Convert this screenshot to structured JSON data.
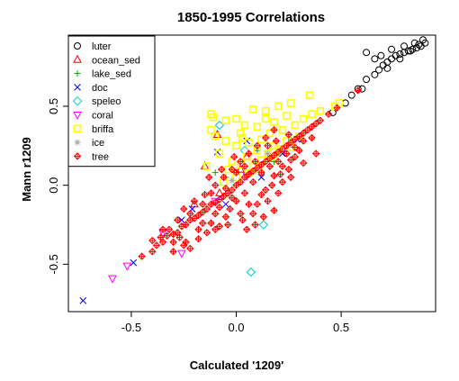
{
  "chart_data": {
    "type": "scatter",
    "title": "1850-1995 Correlations",
    "xlabel": "Calculated '1209'",
    "ylabel": "Mann r1209",
    "xlim": [
      -0.8,
      0.95
    ],
    "ylim": [
      -0.8,
      0.95
    ],
    "x_ticks": [
      "-0.5",
      "0.0",
      "0.5"
    ],
    "y_ticks": [
      "-0.5",
      "0.0",
      "0.5"
    ],
    "grid": false,
    "legend_position": "top-left",
    "series": [
      {
        "name": "luter",
        "color": "#000000",
        "marker": "circle",
        "points": [
          [
            0.62,
            0.84
          ],
          [
            0.66,
            0.8
          ],
          [
            0.7,
            0.76
          ],
          [
            0.72,
            0.78
          ],
          [
            0.74,
            0.8
          ],
          [
            0.76,
            0.82
          ],
          [
            0.78,
            0.83
          ],
          [
            0.8,
            0.84
          ],
          [
            0.82,
            0.85
          ],
          [
            0.84,
            0.86
          ],
          [
            0.86,
            0.87
          ],
          [
            0.88,
            0.88
          ],
          [
            0.9,
            0.9
          ],
          [
            0.89,
            0.92
          ],
          [
            0.85,
            0.9
          ],
          [
            0.8,
            0.88
          ],
          [
            0.74,
            0.86
          ],
          [
            0.69,
            0.82
          ],
          [
            0.66,
            0.7
          ],
          [
            0.62,
            0.67
          ],
          [
            0.58,
            0.61
          ],
          [
            0.6,
            0.61
          ],
          [
            0.55,
            0.57
          ],
          [
            0.52,
            0.52
          ],
          [
            0.46,
            0.46
          ],
          [
            0.68,
            0.73
          ],
          [
            0.83,
            0.85
          ],
          [
            0.87,
            0.89
          ],
          [
            0.78,
            0.8
          ],
          [
            0.72,
            0.74
          ]
        ]
      },
      {
        "name": "ocean_sed",
        "color": "#ff0000",
        "marker": "triangle-up",
        "points": [
          [
            -0.09,
            0.32
          ],
          [
            -0.15,
            0.12
          ],
          [
            -0.08,
            -0.05
          ],
          [
            0.02,
            0.1
          ],
          [
            0.05,
            0.18
          ],
          [
            -0.2,
            -0.12
          ]
        ]
      },
      {
        "name": "lake_sed",
        "color": "#00aa00",
        "marker": "plus",
        "points": [
          [
            0.1,
            0.22
          ],
          [
            0.25,
            0.3
          ],
          [
            -0.05,
            0.05
          ],
          [
            0.18,
            0.15
          ],
          [
            -0.1,
            0.08
          ]
        ]
      },
      {
        "name": "doc",
        "color": "#0000ff",
        "marker": "x",
        "points": [
          [
            -0.73,
            -0.73
          ],
          [
            -0.49,
            -0.49
          ],
          [
            -0.26,
            -0.22
          ],
          [
            -0.09,
            0.21
          ],
          [
            0.05,
            0.28
          ],
          [
            0.29,
            0.29
          ],
          [
            -0.21,
            -0.15
          ],
          [
            0.12,
            0.05
          ],
          [
            -0.05,
            -0.12
          ],
          [
            0.22,
            0.2
          ]
        ]
      },
      {
        "name": "speleo",
        "color": "#00cccc",
        "marker": "diamond",
        "points": [
          [
            0.07,
            -0.55
          ],
          [
            0.13,
            -0.25
          ],
          [
            -0.08,
            0.38
          ],
          [
            0.04,
            0.22
          ]
        ]
      },
      {
        "name": "coral",
        "color": "#ff00ff",
        "marker": "triangle-down",
        "points": [
          [
            -0.59,
            -0.59
          ],
          [
            -0.52,
            -0.51
          ],
          [
            -0.26,
            -0.43
          ],
          [
            -0.1,
            -0.1
          ],
          [
            0.05,
            0.06
          ],
          [
            -0.35,
            -0.3
          ]
        ]
      },
      {
        "name": "briffa",
        "color": "#ffff00",
        "marker": "square",
        "points": [
          [
            -0.12,
            0.45
          ],
          [
            -0.11,
            0.43
          ],
          [
            -0.05,
            0.41
          ],
          [
            0.0,
            0.42
          ],
          [
            0.08,
            0.48
          ],
          [
            0.14,
            0.47
          ],
          [
            0.2,
            0.5
          ],
          [
            0.26,
            0.52
          ],
          [
            0.35,
            0.57
          ],
          [
            0.4,
            0.47
          ],
          [
            0.49,
            0.52
          ],
          [
            0.47,
            0.5
          ],
          [
            -0.1,
            0.31
          ],
          [
            -0.05,
            0.28
          ],
          [
            0.02,
            0.33
          ],
          [
            0.1,
            0.37
          ],
          [
            0.16,
            0.33
          ],
          [
            0.22,
            0.35
          ],
          [
            0.28,
            0.38
          ],
          [
            0.32,
            0.42
          ],
          [
            0.36,
            0.45
          ],
          [
            -0.08,
            0.2
          ],
          [
            0.0,
            0.25
          ],
          [
            0.06,
            0.27
          ],
          [
            0.12,
            0.29
          ],
          [
            0.18,
            0.25
          ],
          [
            0.24,
            0.28
          ],
          [
            0.3,
            0.31
          ],
          [
            -0.14,
            0.12
          ],
          [
            -0.02,
            0.15
          ],
          [
            0.05,
            0.18
          ],
          [
            0.1,
            0.22
          ],
          [
            0.15,
            0.2
          ],
          [
            0.2,
            0.23
          ],
          [
            0.26,
            0.24
          ],
          [
            -0.04,
            0.1
          ],
          [
            0.02,
            0.13
          ],
          [
            0.08,
            0.12
          ],
          [
            0.12,
            0.16
          ],
          [
            0.18,
            0.18
          ],
          [
            -0.12,
            0.35
          ],
          [
            0.04,
            0.38
          ],
          [
            0.18,
            0.4
          ],
          [
            0.0,
            0.05
          ],
          [
            0.06,
            0.08
          ],
          [
            0.11,
            0.1
          ],
          [
            -0.06,
            0.02
          ],
          [
            0.03,
            0.3
          ],
          [
            0.14,
            0.42
          ],
          [
            0.24,
            0.44
          ]
        ]
      },
      {
        "name": "ice",
        "color": "#aaaaaa",
        "marker": "asterisk",
        "points": [
          [
            0.15,
            0.2
          ],
          [
            0.25,
            0.25
          ],
          [
            -0.02,
            0.03
          ]
        ]
      },
      {
        "name": "tree",
        "color": "#ff0000",
        "marker": "crossed-diamond",
        "points": [
          [
            -0.45,
            -0.45
          ],
          [
            -0.4,
            -0.42
          ],
          [
            -0.38,
            -0.38
          ],
          [
            -0.35,
            -0.36
          ],
          [
            -0.33,
            -0.32
          ],
          [
            -0.3,
            -0.31
          ],
          [
            -0.28,
            -0.3
          ],
          [
            -0.26,
            -0.26
          ],
          [
            -0.24,
            -0.25
          ],
          [
            -0.22,
            -0.22
          ],
          [
            -0.2,
            -0.21
          ],
          [
            -0.18,
            -0.19
          ],
          [
            -0.16,
            -0.17
          ],
          [
            -0.14,
            -0.15
          ],
          [
            -0.12,
            -0.12
          ],
          [
            -0.1,
            -0.11
          ],
          [
            -0.08,
            -0.09
          ],
          [
            -0.06,
            -0.07
          ],
          [
            -0.04,
            -0.05
          ],
          [
            -0.02,
            -0.03
          ],
          [
            0.0,
            0.0
          ],
          [
            0.02,
            0.02
          ],
          [
            0.04,
            0.05
          ],
          [
            0.06,
            0.07
          ],
          [
            0.08,
            0.09
          ],
          [
            0.1,
            0.11
          ],
          [
            0.12,
            0.13
          ],
          [
            0.14,
            0.15
          ],
          [
            0.16,
            0.17
          ],
          [
            0.18,
            0.19
          ],
          [
            0.2,
            0.21
          ],
          [
            0.22,
            0.23
          ],
          [
            0.24,
            0.25
          ],
          [
            0.26,
            0.27
          ],
          [
            0.28,
            0.29
          ],
          [
            0.3,
            0.31
          ],
          [
            0.32,
            0.33
          ],
          [
            0.34,
            0.35
          ],
          [
            0.36,
            0.37
          ],
          [
            0.38,
            0.39
          ],
          [
            0.4,
            0.41
          ],
          [
            0.44,
            0.45
          ],
          [
            0.48,
            0.49
          ],
          [
            0.58,
            0.6
          ],
          [
            -0.4,
            -0.35
          ],
          [
            -0.36,
            -0.33
          ],
          [
            -0.32,
            -0.28
          ],
          [
            -0.3,
            -0.36
          ],
          [
            -0.27,
            -0.33
          ],
          [
            -0.25,
            -0.38
          ],
          [
            -0.22,
            -0.4
          ],
          [
            -0.18,
            -0.34
          ],
          [
            -0.14,
            -0.3
          ],
          [
            -0.12,
            -0.24
          ],
          [
            -0.1,
            -0.18
          ],
          [
            -0.08,
            -0.26
          ],
          [
            -0.05,
            -0.2
          ],
          [
            -0.03,
            -0.15
          ],
          [
            0.0,
            -0.1
          ],
          [
            0.03,
            -0.22
          ],
          [
            0.05,
            -0.28
          ],
          [
            0.08,
            -0.18
          ],
          [
            0.1,
            -0.12
          ],
          [
            0.13,
            -0.2
          ],
          [
            0.15,
            -0.1
          ],
          [
            0.18,
            -0.16
          ],
          [
            0.2,
            -0.05
          ],
          [
            0.22,
            0.02
          ],
          [
            0.25,
            0.1
          ],
          [
            0.28,
            0.18
          ],
          [
            -0.2,
            -0.1
          ],
          [
            -0.15,
            -0.06
          ],
          [
            -0.1,
            0.0
          ],
          [
            -0.06,
            0.05
          ],
          [
            -0.02,
            0.1
          ],
          [
            0.02,
            0.15
          ],
          [
            0.06,
            0.2
          ],
          [
            0.1,
            0.25
          ],
          [
            0.14,
            0.3
          ],
          [
            0.18,
            0.35
          ],
          [
            -0.25,
            -0.15
          ],
          [
            -0.18,
            -0.28
          ],
          [
            -0.12,
            -0.05
          ],
          [
            -0.05,
            -0.02
          ],
          [
            0.0,
            0.08
          ],
          [
            0.04,
            -0.05
          ],
          [
            0.08,
            0.02
          ],
          [
            0.12,
            0.08
          ],
          [
            0.16,
            0.12
          ],
          [
            0.2,
            0.15
          ],
          [
            0.24,
            0.2
          ],
          [
            0.28,
            0.24
          ],
          [
            0.32,
            0.28
          ],
          [
            0.36,
            0.3
          ],
          [
            -0.35,
            -0.28
          ],
          [
            -0.28,
            -0.22
          ],
          [
            -0.22,
            -0.18
          ],
          [
            -0.16,
            -0.12
          ],
          [
            -0.08,
            -0.14
          ],
          [
            -0.02,
            -0.08
          ],
          [
            0.06,
            -0.12
          ],
          [
            0.12,
            -0.06
          ],
          [
            0.18,
            0.06
          ],
          [
            0.22,
            0.12
          ],
          [
            0.26,
            0.16
          ],
          [
            0.3,
            0.22
          ],
          [
            -0.3,
            -0.42
          ],
          [
            -0.24,
            -0.36
          ],
          [
            -0.16,
            -0.24
          ],
          [
            -0.1,
            -0.28
          ],
          [
            -0.04,
            -0.25
          ],
          [
            0.02,
            -0.18
          ],
          [
            0.09,
            -0.25
          ],
          [
            0.14,
            -0.03
          ],
          [
            0.17,
            0.0
          ],
          [
            0.21,
            0.07
          ],
          [
            0.26,
            0.05
          ],
          [
            0.32,
            0.14
          ],
          [
            0.38,
            0.2
          ],
          [
            -0.13,
            0.05
          ],
          [
            -0.07,
            0.1
          ],
          [
            -0.01,
            0.18
          ],
          [
            0.04,
            0.12
          ],
          [
            0.09,
            0.15
          ],
          [
            0.15,
            0.25
          ],
          [
            0.19,
            0.28
          ],
          [
            0.25,
            0.32
          ]
        ]
      }
    ]
  }
}
